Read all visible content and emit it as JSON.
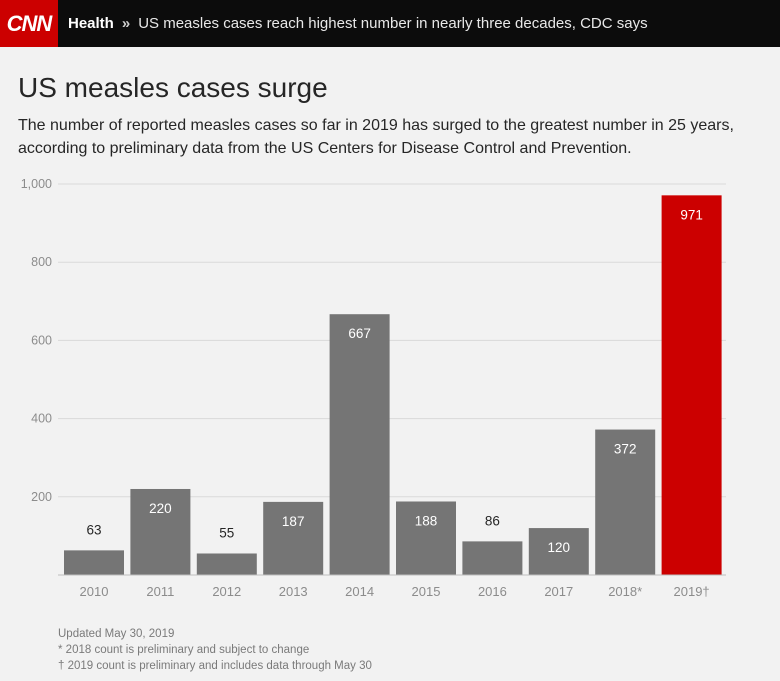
{
  "header": {
    "logo_text": "CNN",
    "section": "Health",
    "separator": "»",
    "headline": "US measles cases reach highest number in nearly three decades, CDC says"
  },
  "title": "US measles cases surge",
  "subtitle": "The number of reported measles cases so far in 2019 has surged to the greatest number in 25 years, according to preliminary data from the US Centers for Disease Control and Prevention.",
  "colors": {
    "bar": "#757575",
    "highlight": "#cc0000",
    "grid": "#d9d9d9",
    "axis_text": "#8c8c8c",
    "label_light": "#ffffff",
    "label_dark": "#262626"
  },
  "chart_data": {
    "type": "bar",
    "categories": [
      "2010",
      "2011",
      "2012",
      "2013",
      "2014",
      "2015",
      "2016",
      "2017",
      "2018*",
      "2019†"
    ],
    "values": [
      63,
      220,
      55,
      187,
      667,
      188,
      86,
      120,
      372,
      971
    ],
    "data_labels": [
      "63",
      "220",
      "55",
      "187",
      "667",
      "188",
      "86",
      "120",
      "372",
      "971"
    ],
    "highlight_index": 9,
    "ylim": [
      0,
      1000
    ],
    "yticks": [
      200,
      400,
      600,
      800,
      1000
    ],
    "ytick_labels": [
      "200",
      "400",
      "600",
      "800",
      "1,000"
    ],
    "grid": true,
    "legend": "none"
  },
  "notes": [
    "Updated May 30, 2019",
    "* 2018 count is preliminary and subject to change",
    "† 2019 count is preliminary and includes data through May 30"
  ]
}
